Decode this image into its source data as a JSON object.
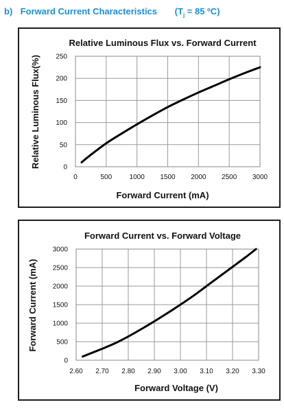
{
  "heading": {
    "label": "b)",
    "title": "Forward Current Characteristics",
    "cond_open": "(T",
    "cond_sub": "j",
    "cond_close": " = 85 ºC)",
    "color": "#1a8fd8"
  },
  "chart_data": [
    {
      "type": "line",
      "title": "Relative Luminous Flux vs. Forward Current",
      "xlabel": "Forward Current (mA)",
      "ylabel": "Relative Luminous Flux(%)",
      "xlim": [
        0,
        3000
      ],
      "ylim": [
        0,
        250
      ],
      "xticks": [
        0,
        500,
        1000,
        1500,
        2000,
        2500,
        3000
      ],
      "yticks": [
        0,
        50,
        100,
        150,
        200,
        250
      ],
      "xtick_labels": [
        "0",
        "500",
        "1000",
        "1500",
        "2000",
        "2500",
        "3000"
      ],
      "ytick_labels": [
        "0",
        "50",
        "100",
        "150",
        "200",
        "250"
      ],
      "grid": true,
      "series": [
        {
          "x": [
            100,
            250,
            500,
            750,
            1000,
            1250,
            1500,
            1750,
            2000,
            2250,
            2500,
            2750,
            3000
          ],
          "y": [
            10,
            27,
            53,
            75,
            96,
            116,
            135,
            152,
            168,
            183,
            198,
            212,
            225
          ]
        }
      ]
    },
    {
      "type": "line",
      "title": "Forward Current vs. Forward Voltage",
      "xlabel": "Forward Voltage (V)",
      "ylabel": "Forward Current (mA)",
      "xlim": [
        2.6,
        3.3
      ],
      "ylim": [
        0,
        3000
      ],
      "xticks": [
        2.6,
        2.7,
        2.8,
        2.9,
        3.0,
        3.1,
        3.2,
        3.3
      ],
      "yticks": [
        0,
        500,
        1000,
        1500,
        2000,
        2500,
        3000
      ],
      "xtick_labels": [
        "2.60",
        "2.70",
        "2.80",
        "2.90",
        "3.00",
        "3.10",
        "3.20",
        "3.30"
      ],
      "ytick_labels": [
        "0",
        "500",
        "1000",
        "1500",
        "2000",
        "2500",
        "3000"
      ],
      "grid": true,
      "series": [
        {
          "x": [
            2.625,
            2.7,
            2.75,
            2.8,
            2.85,
            2.9,
            2.95,
            3.0,
            3.05,
            3.1,
            3.15,
            3.2,
            3.25,
            3.29
          ],
          "y": [
            100,
            310,
            460,
            640,
            840,
            1050,
            1270,
            1500,
            1740,
            2000,
            2260,
            2520,
            2780,
            3000
          ]
        }
      ]
    }
  ]
}
